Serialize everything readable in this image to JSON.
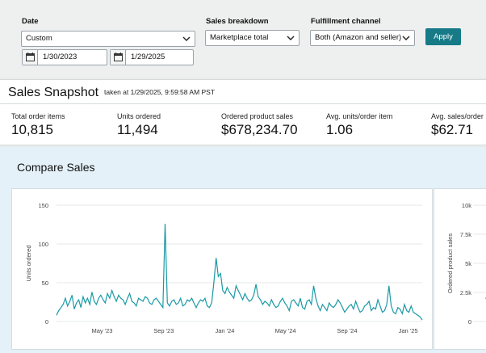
{
  "filters": {
    "date": {
      "label": "Date",
      "selected": "Custom",
      "start_date": "1/30/2023",
      "end_date": "1/29/2025"
    },
    "sales_breakdown": {
      "label": "Sales breakdown",
      "selected": "Marketplace total"
    },
    "fulfillment_channel": {
      "label": "Fulfillment channel",
      "selected": "Both (Amazon and seller)"
    },
    "apply_label": "Apply"
  },
  "snapshot": {
    "title": "Sales Snapshot",
    "taken_at": "taken at 1/29/2025, 9:59:58 AM PST",
    "metrics": [
      {
        "label": "Total order items",
        "value": "10,815"
      },
      {
        "label": "Units ordered",
        "value": "11,494"
      },
      {
        "label": "Ordered product sales",
        "value": "$678,234.70"
      },
      {
        "label": "Avg. units/order item",
        "value": "1.06"
      },
      {
        "label": "Avg. sales/order",
        "value": "$62.71"
      }
    ]
  },
  "compare": {
    "title": "Compare Sales"
  },
  "colors": {
    "accent": "#167a87",
    "line": "#1a9aa5"
  },
  "chart_data": [
    {
      "type": "line",
      "ylabel": "Units ordered",
      "yticks": [
        "150",
        "100",
        "50",
        "0"
      ],
      "ylim": [
        0,
        150
      ],
      "xticks": [
        "May '23",
        "Sep '23",
        "Jan '24",
        "May '24",
        "Sep '24",
        "Jan '25"
      ],
      "x_range": [
        "2023-01-30",
        "2025-01-29"
      ],
      "series": [
        {
          "values": [
            8,
            14,
            18,
            22,
            30,
            20,
            26,
            34,
            16,
            24,
            28,
            18,
            32,
            24,
            30,
            22,
            38,
            26,
            22,
            30,
            34,
            28,
            24,
            36,
            30,
            40,
            32,
            26,
            34,
            30,
            28,
            22,
            30,
            36,
            26,
            24,
            20,
            30,
            28,
            26,
            32,
            30,
            24,
            22,
            28,
            30,
            26,
            22,
            18,
            126,
            24,
            20,
            26,
            28,
            22,
            24,
            30,
            20,
            22,
            28,
            26,
            30,
            24,
            18,
            24,
            28,
            26,
            30,
            20,
            18,
            24,
            50,
            82,
            58,
            62,
            40,
            36,
            44,
            38,
            34,
            30,
            46,
            40,
            34,
            28,
            36,
            30,
            26,
            28,
            34,
            48,
            32,
            28,
            22,
            26,
            24,
            20,
            28,
            22,
            18,
            20,
            26,
            30,
            24,
            20,
            14,
            26,
            28,
            24,
            20,
            30,
            18,
            16,
            26,
            28,
            22,
            46,
            30,
            20,
            14,
            22,
            18,
            14,
            24,
            20,
            18,
            22,
            28,
            24,
            18,
            12,
            16,
            20,
            22,
            16,
            26,
            18,
            12,
            14,
            20,
            22,
            26,
            14,
            18,
            16,
            28,
            20,
            12,
            14,
            22,
            46,
            20,
            12,
            10,
            18,
            16,
            10,
            22,
            14,
            12,
            20,
            12,
            10,
            8,
            6,
            2
          ]
        }
      ]
    },
    {
      "type": "line",
      "ylabel": "Ordered product sales",
      "yticks": [
        "10k",
        "7.5k",
        "5k",
        "2.5k",
        "0"
      ],
      "ylim": [
        0,
        10000
      ],
      "xticks": [],
      "series": [
        {
          "values": []
        }
      ]
    }
  ]
}
